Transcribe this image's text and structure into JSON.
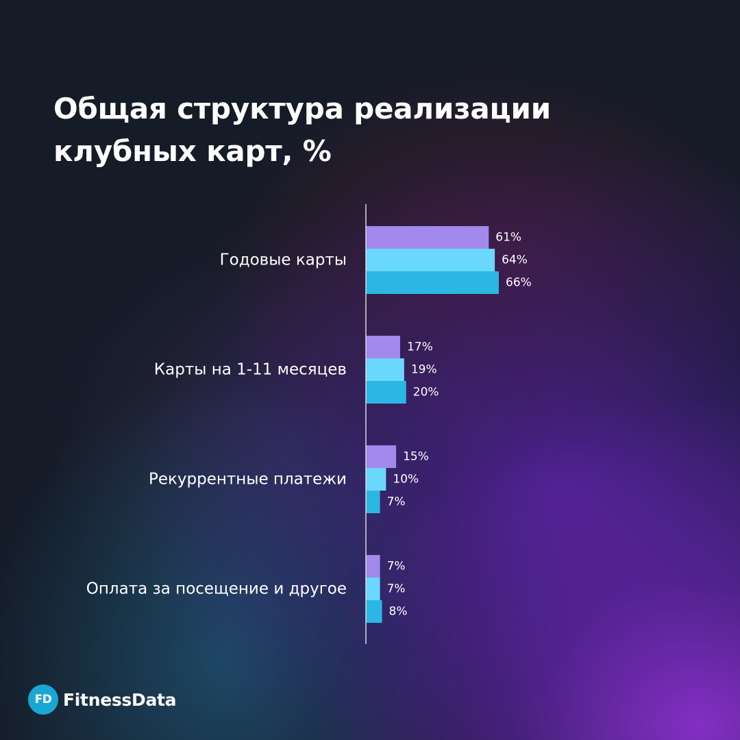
{
  "title": "Общая структура реализации клубных карт, %",
  "brand": {
    "mark": "FD",
    "name": "FitnessData",
    "mark_color": "#1aa7d6"
  },
  "series_colors": [
    "#a388ee",
    "#6ad8fc",
    "#2ab7e4"
  ],
  "chart_data": {
    "type": "bar",
    "orientation": "horizontal",
    "title": "Общая структура реализации клубных карт, %",
    "categories": [
      "Годовые карты",
      "Карты на 1-11 месяцев",
      "Рекуррентные платежи",
      "Оплата за посещение и другое"
    ],
    "series": [
      {
        "values": [
          61,
          17,
          15,
          7
        ]
      },
      {
        "values": [
          64,
          19,
          10,
          7
        ]
      },
      {
        "values": [
          66,
          20,
          7,
          8
        ]
      }
    ],
    "value_suffix": "%",
    "xlim": [
      0,
      100
    ],
    "grid": false,
    "legend": "none"
  }
}
